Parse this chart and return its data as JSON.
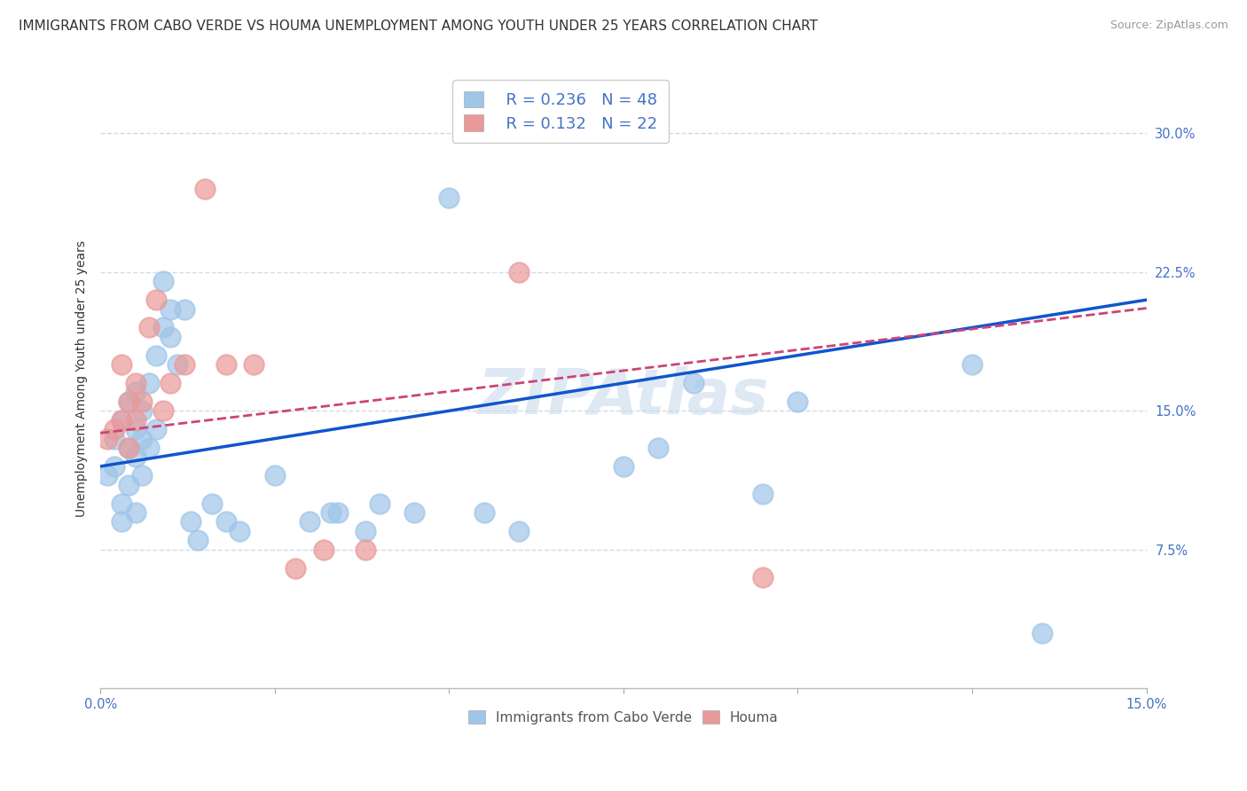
{
  "title": "IMMIGRANTS FROM CABO VERDE VS HOUMA UNEMPLOYMENT AMONG YOUTH UNDER 25 YEARS CORRELATION CHART",
  "source": "Source: ZipAtlas.com",
  "ylabel": "Unemployment Among Youth under 25 years",
  "xlim": [
    0.0,
    0.15
  ],
  "ylim": [
    0.0,
    0.335
  ],
  "ytick_positions": [
    0.075,
    0.15,
    0.225,
    0.3
  ],
  "ytick_labels": [
    "7.5%",
    "15.0%",
    "22.5%",
    "30.0%"
  ],
  "xtick_positions": [
    0.0,
    0.025,
    0.05,
    0.075,
    0.1,
    0.125,
    0.15
  ],
  "xtick_labels": [
    "0.0%",
    "",
    "",
    "",
    "",
    "",
    "15.0%"
  ],
  "watermark": "ZIPAtlas",
  "legend_r1": "R = 0.236",
  "legend_n1": "N = 48",
  "legend_r2": "R = 0.132",
  "legend_n2": "N = 22",
  "blue_color": "#9fc5e8",
  "pink_color": "#ea9999",
  "blue_line_color": "#1155cc",
  "pink_line_color": "#cc4477",
  "grid_color": "#d0dce8",
  "background_color": "#ffffff",
  "blue_x": [
    0.001,
    0.002,
    0.002,
    0.003,
    0.003,
    0.003,
    0.004,
    0.004,
    0.004,
    0.005,
    0.005,
    0.005,
    0.005,
    0.006,
    0.006,
    0.006,
    0.007,
    0.007,
    0.008,
    0.008,
    0.009,
    0.009,
    0.01,
    0.01,
    0.011,
    0.012,
    0.013,
    0.014,
    0.016,
    0.018,
    0.02,
    0.025,
    0.03,
    0.033,
    0.034,
    0.038,
    0.04,
    0.045,
    0.05,
    0.055,
    0.06,
    0.075,
    0.08,
    0.085,
    0.095,
    0.1,
    0.125,
    0.135
  ],
  "blue_y": [
    0.115,
    0.12,
    0.135,
    0.09,
    0.1,
    0.145,
    0.11,
    0.13,
    0.155,
    0.095,
    0.125,
    0.14,
    0.16,
    0.115,
    0.135,
    0.15,
    0.13,
    0.165,
    0.14,
    0.18,
    0.195,
    0.22,
    0.19,
    0.205,
    0.175,
    0.205,
    0.09,
    0.08,
    0.1,
    0.09,
    0.085,
    0.115,
    0.09,
    0.095,
    0.095,
    0.085,
    0.1,
    0.095,
    0.265,
    0.095,
    0.085,
    0.12,
    0.13,
    0.165,
    0.105,
    0.155,
    0.175,
    0.03
  ],
  "pink_x": [
    0.001,
    0.002,
    0.003,
    0.003,
    0.004,
    0.004,
    0.005,
    0.005,
    0.006,
    0.007,
    0.008,
    0.009,
    0.01,
    0.012,
    0.015,
    0.018,
    0.022,
    0.028,
    0.032,
    0.038,
    0.06,
    0.095
  ],
  "pink_y": [
    0.135,
    0.14,
    0.145,
    0.175,
    0.13,
    0.155,
    0.145,
    0.165,
    0.155,
    0.195,
    0.21,
    0.15,
    0.165,
    0.175,
    0.27,
    0.175,
    0.175,
    0.065,
    0.075,
    0.075,
    0.225,
    0.06
  ],
  "title_fontsize": 11,
  "axis_label_fontsize": 10,
  "tick_fontsize": 10.5,
  "watermark_fontsize": 52,
  "legend_fontsize": 13,
  "blue_intercept": 0.12,
  "blue_slope": 0.6,
  "pink_intercept": 0.138,
  "pink_slope": 0.45
}
